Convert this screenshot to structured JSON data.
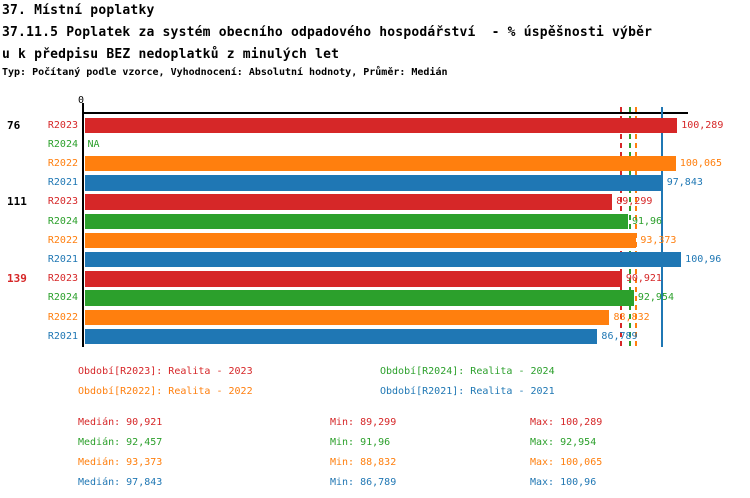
{
  "window": {
    "background": "#ffffff"
  },
  "header": {
    "title": "37. Místní poplatky",
    "subtitle_line1": "37.11.5 Poplatek za systém obecního odpadového hospodářství  - % úspěšnosti výběr",
    "subtitle_line2": "u k předpisu BEZ nedoplatků z minulých let",
    "meta": "Typ: Počítaný podle vzorce, Vyhodnocení: Absolutní hodnoty, Průměr: Medián"
  },
  "colors": {
    "R2023": "#d62728",
    "R2024": "#2ca02c",
    "R2022": "#ff7f0e",
    "R2021": "#1f77b4",
    "axis": "#000000"
  },
  "chart_data": {
    "type": "bar",
    "orientation": "horizontal",
    "value_unit": "%",
    "axis": {
      "origin_label": "0",
      "xlim": [
        0,
        102
      ],
      "grid": false,
      "legend_position": "bottom"
    },
    "series_order": [
      "R2023",
      "R2024",
      "R2022",
      "R2021"
    ],
    "groups": [
      {
        "label": "76",
        "label_color": "#000000",
        "bars": [
          {
            "series": "R2023",
            "value": 100.289,
            "display": "100,289"
          },
          {
            "series": "R2024",
            "value": null,
            "display": "NA"
          },
          {
            "series": "R2022",
            "value": 100.065,
            "display": "100,065"
          },
          {
            "series": "R2021",
            "value": 97.843,
            "display": "97,843"
          }
        ]
      },
      {
        "label": "111",
        "label_color": "#000000",
        "bars": [
          {
            "series": "R2023",
            "value": 89.299,
            "display": "89,299"
          },
          {
            "series": "R2024",
            "value": 91.96,
            "display": "91,96"
          },
          {
            "series": "R2022",
            "value": 93.373,
            "display": "93,373"
          },
          {
            "series": "R2021",
            "value": 100.96,
            "display": "100,96"
          }
        ]
      },
      {
        "label": "139",
        "label_color": "#d62728",
        "bars": [
          {
            "series": "R2023",
            "value": 90.921,
            "display": "90,921"
          },
          {
            "series": "R2024",
            "value": 92.954,
            "display": "92,954"
          },
          {
            "series": "R2022",
            "value": 88.832,
            "display": "88,832"
          },
          {
            "series": "R2021",
            "value": 86.789,
            "display": "86,789"
          }
        ]
      }
    ],
    "median_lines": [
      {
        "series": "R2023",
        "value": 90.921,
        "style": "dashed"
      },
      {
        "series": "R2024",
        "value": 92.457,
        "style": "dashed"
      },
      {
        "series": "R2022",
        "value": 93.373,
        "style": "dashed"
      },
      {
        "series": "R2021",
        "value": 97.843,
        "style": "solid"
      }
    ],
    "legend": [
      {
        "series": "R2023",
        "label": "Období[R2023]: Realita - 2023",
        "col": 0,
        "row": 0
      },
      {
        "series": "R2024",
        "label": "Období[R2024]: Realita - 2024",
        "col": 1,
        "row": 0
      },
      {
        "series": "R2022",
        "label": "Období[R2022]: Realita - 2022",
        "col": 0,
        "row": 1
      },
      {
        "series": "R2021",
        "label": "Období[R2021]: Realita - 2021",
        "col": 1,
        "row": 1
      }
    ],
    "stats": {
      "labels": {
        "median": "Medián",
        "min": "Min",
        "max": "Max"
      },
      "rows": [
        {
          "series": "R2023",
          "median": "90,921",
          "min": "89,299",
          "max": "100,289"
        },
        {
          "series": "R2024",
          "median": "92,457",
          "min": "91,96",
          "max": "92,954"
        },
        {
          "series": "R2022",
          "median": "93,373",
          "min": "88,832",
          "max": "100,065"
        },
        {
          "series": "R2021",
          "median": "97,843",
          "min": "86,789",
          "max": "100,96"
        }
      ]
    }
  }
}
